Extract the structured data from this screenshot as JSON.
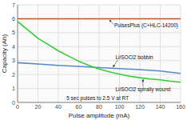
{
  "chart_data": {
    "type": "line",
    "title": "",
    "xlabel": "Pulse amplitude (mA)",
    "ylabel": "Capacity (Ah)",
    "xlim": [
      0,
      160
    ],
    "ylim": [
      0,
      7
    ],
    "xticks": [
      0,
      20,
      40,
      60,
      80,
      100,
      120,
      140,
      160
    ],
    "yticks": [
      0,
      1,
      2,
      3,
      4,
      5,
      6,
      7
    ],
    "grid": true,
    "series": [
      {
        "color": "#c0522a",
        "x": [
          0,
          160
        ],
        "values": [
          6.0,
          6.0
        ]
      },
      {
        "color": "#5588cc",
        "x": [
          0,
          20,
          40,
          60,
          80,
          100,
          120,
          140,
          160
        ],
        "values": [
          2.85,
          2.75,
          2.65,
          2.58,
          2.5,
          2.42,
          2.35,
          2.25,
          2.08
        ]
      },
      {
        "color": "#33cc33",
        "x": [
          0,
          10,
          20,
          30,
          40,
          50,
          60,
          70,
          80,
          90,
          100,
          110,
          120,
          130,
          140,
          150,
          160
        ],
        "values": [
          5.8,
          5.2,
          4.6,
          4.15,
          3.7,
          3.32,
          2.95,
          2.65,
          2.4,
          2.2,
          2.02,
          1.88,
          1.77,
          1.68,
          1.62,
          1.52,
          1.45
        ]
      }
    ],
    "annotations": [
      "PulsesPlus (C+HLC-14200)",
      "Li/SOCl2 bobbin",
      "Li/SOCl2 spirally wound",
      "5 sec pulses to 2.5 V at RT"
    ]
  }
}
